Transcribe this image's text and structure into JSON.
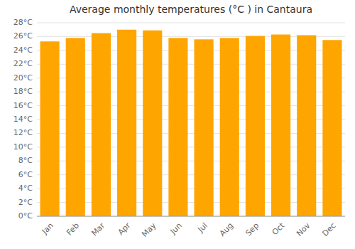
{
  "chart_data": {
    "type": "bar",
    "title": "Average monthly temperatures (°C ) in Cantaura",
    "categories": [
      "Jan",
      "Feb",
      "Mar",
      "Apr",
      "May",
      "Jun",
      "Jul",
      "Aug",
      "Sep",
      "Oct",
      "Nov",
      "Dec"
    ],
    "values": [
      25.3,
      25.8,
      26.5,
      27.0,
      26.9,
      25.8,
      25.6,
      25.8,
      26.1,
      26.3,
      26.2,
      25.5
    ],
    "color": "#FFA500",
    "ylim": [
      0,
      28
    ],
    "yticks": [
      {
        "value": 0,
        "label": "0°C"
      },
      {
        "value": 2,
        "label": "2°C"
      },
      {
        "value": 4,
        "label": "4°C"
      },
      {
        "value": 6,
        "label": "6°C"
      },
      {
        "value": 8,
        "label": "8°C"
      },
      {
        "value": 10,
        "label": "10°C"
      },
      {
        "value": 12,
        "label": "12°C"
      },
      {
        "value": 14,
        "label": "14°C"
      },
      {
        "value": 16,
        "label": "16°C"
      },
      {
        "value": 18,
        "label": "18°C"
      },
      {
        "value": 20,
        "label": "20°C"
      },
      {
        "value": 22,
        "label": "22°C"
      },
      {
        "value": 24,
        "label": "24°C"
      },
      {
        "value": 26,
        "label": "26°C"
      },
      {
        "value": 28,
        "label": "28°C"
      }
    ],
    "grid": true
  }
}
